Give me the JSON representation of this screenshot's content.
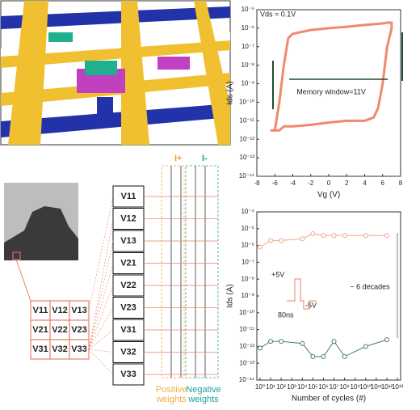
{
  "chart_data": [
    {
      "type": "line",
      "yscale": "log",
      "x": [
        -6.5,
        -6,
        -5.5,
        -5,
        -4,
        -2,
        0,
        2,
        4,
        5,
        5.5,
        6,
        6.5,
        7,
        7,
        6.5,
        6,
        4,
        2,
        0,
        -2,
        -4,
        -4.5,
        -5,
        -5.5,
        -6,
        -6.5
      ],
      "series": [
        {
          "color": "#f08a6c",
          "values": [
            3e-12,
            3e-12,
            3e-12,
            5e-12,
            5e-12,
            6e-12,
            8e-12,
            1e-11,
            1e-11,
            1.5e-11,
            5e-11,
            1e-09,
            1e-07,
            1e-06,
            2e-06,
            2e-06,
            1.8e-06,
            1.5e-06,
            1.2e-06,
            1e-06,
            8e-07,
            5e-07,
            3e-07,
            1e-08,
            1e-10,
            3e-12,
            3e-12
          ]
        }
      ],
      "xlim": [
        -8,
        8
      ],
      "xticks": [
        -8,
        -6,
        -4,
        -2,
        0,
        2,
        4,
        6,
        8
      ],
      "ylim": [
        1e-14,
        1e-05
      ],
      "yticks": [
        {
          "value": 1e-14,
          "label": "10⁻¹⁴"
        },
        {
          "value": 1e-13,
          "label": "10⁻¹³"
        },
        {
          "value": 1e-12,
          "label": "10⁻¹²"
        },
        {
          "value": 1e-11,
          "label": "10⁻¹¹"
        },
        {
          "value": 1e-10,
          "label": "10⁻¹⁰"
        },
        {
          "value": 1e-09,
          "label": "10⁻⁹"
        },
        {
          "value": 1e-08,
          "label": "10⁻⁸"
        },
        {
          "value": 1e-07,
          "label": "10⁻⁷"
        },
        {
          "value": 1e-06,
          "label": "10⁻⁶"
        },
        {
          "value": 1e-05,
          "label": "10⁻⁵"
        }
      ],
      "xlabel": "Vg (V)",
      "ylabel": "Ids (A)",
      "annotations": [
        "Vds = 0.1V",
        "Memory window=11V"
      ]
    },
    {
      "type": "line",
      "yscale": "log",
      "xscale": "log",
      "markers": true,
      "x": [
        1,
        10,
        100,
        10000,
        100000,
        1000000,
        10000000,
        100000000,
        10000000000,
        1000000000000
      ],
      "series": [
        {
          "color": "#f4a28c",
          "values": [
            8e-07,
            2e-06,
            2e-06,
            2.5e-06,
            5e-06,
            4e-06,
            4e-06,
            4e-06,
            4e-06,
            4e-06
          ]
        },
        {
          "color": "#4a7a6a",
          "values": [
            8e-13,
            2e-12,
            2e-12,
            1.5e-12,
            2.5e-13,
            2.5e-13,
            2e-12,
            2.5e-13,
            1e-12,
            2.5e-12
          ]
        }
      ],
      "xlim": [
        0.5,
        20000000000000
      ],
      "xticks": [
        {
          "value": 1,
          "label": "10⁰"
        },
        {
          "value": 10,
          "label": "10¹"
        },
        {
          "value": 100,
          "label": "10²"
        },
        {
          "value": 1000,
          "label": "10³"
        },
        {
          "value": 10000,
          "label": "10⁴"
        },
        {
          "value": 100000,
          "label": "10⁵"
        },
        {
          "value": 1000000,
          "label": "10⁶"
        },
        {
          "value": 10000000,
          "label": "10⁷"
        },
        {
          "value": 100000000,
          "label": "10⁸"
        },
        {
          "value": 1000000000,
          "label": "10⁹"
        },
        {
          "value": 10000000000,
          "label": "10¹⁰"
        },
        {
          "value": 100000000000,
          "label": "10¹¹"
        },
        {
          "value": 1000000000000,
          "label": "10¹²"
        },
        {
          "value": 10000000000000,
          "label": "10¹³"
        }
      ],
      "ylim": [
        1e-14,
        0.0001
      ],
      "yticks": [
        {
          "value": 1e-14,
          "label": "10⁻¹⁴"
        },
        {
          "value": 1e-13,
          "label": "10⁻¹³"
        },
        {
          "value": 1e-12,
          "label": "10⁻¹²"
        },
        {
          "value": 1e-11,
          "label": "10⁻¹¹"
        },
        {
          "value": 1e-10,
          "label": "10⁻¹⁰"
        },
        {
          "value": 1e-09,
          "label": "10⁻⁹"
        },
        {
          "value": 1e-08,
          "label": "10⁻⁸"
        },
        {
          "value": 1e-07,
          "label": "10⁻⁷"
        },
        {
          "value": 1e-06,
          "label": "10⁻⁶"
        },
        {
          "value": 1e-05,
          "label": "10⁻⁵"
        },
        {
          "value": 0.0001,
          "label": "10⁻⁴"
        }
      ],
      "xlabel": "Number of cycles (#)",
      "ylabel": "Ids (A)",
      "annotations": [
        "~ 6 decades",
        "+5V",
        "-5V",
        "80ns"
      ]
    }
  ],
  "diagram": {
    "matrix": [
      [
        "V11",
        "V12",
        "V13"
      ],
      [
        "V21",
        "V22",
        "V23"
      ],
      [
        "V31",
        "V32",
        "V33"
      ]
    ],
    "column": [
      "V11",
      "V12",
      "V13",
      "V21",
      "V22",
      "V23",
      "V31",
      "V32",
      "V33"
    ],
    "i_plus": "I+",
    "i_minus": "I-",
    "positive_weights": [
      "Positive",
      "weights"
    ],
    "negative_weights": [
      "Negative",
      "weights"
    ]
  }
}
